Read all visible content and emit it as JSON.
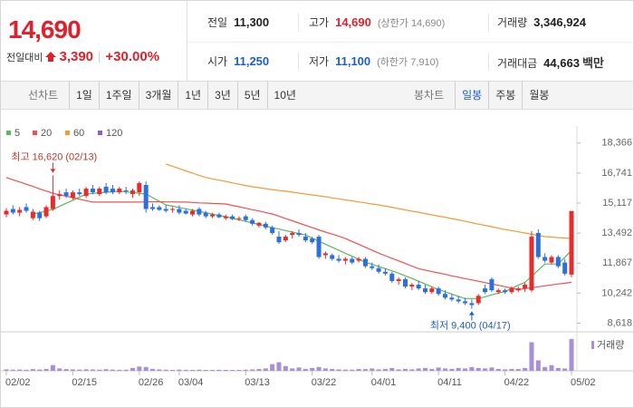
{
  "quote": {
    "price": "14,690",
    "change_label": "전일대비",
    "change": "3,390",
    "change_pct": "+30.00%",
    "color": "#e0202a"
  },
  "stats": [
    {
      "label": "전일",
      "value": "11,300",
      "color": "#222"
    },
    {
      "label": "고가",
      "value": "14,690",
      "note": "(상한가 14,690)",
      "color": "#e0202a"
    },
    {
      "label": "거래량",
      "value": "3,346,924",
      "color": "#222"
    },
    {
      "label": "시가",
      "value": "11,250",
      "color": "#1a5fd0"
    },
    {
      "label": "저가",
      "value": "11,100",
      "note": "(하한가 7,910)",
      "color": "#1a5fd0"
    },
    {
      "label": "거래대금",
      "value": "44,663",
      "unit": "백만",
      "color": "#222"
    }
  ],
  "tabs": {
    "line_label": "선차트",
    "periods": [
      "1일",
      "1주일",
      "3개월",
      "1년",
      "3년",
      "5년",
      "10년"
    ],
    "candle_label": "봉차트",
    "candles": [
      "일봉",
      "주봉",
      "월봉"
    ],
    "active_candle": 0
  },
  "chart_data": {
    "type": "candlestick",
    "categories": [
      "02/02",
      null,
      null,
      null,
      null,
      null,
      null,
      null,
      null,
      null,
      "02/15",
      null,
      null,
      null,
      null,
      null,
      null,
      null,
      null,
      null,
      "02/26",
      null,
      null,
      null,
      null,
      null,
      "03/04",
      null,
      null,
      null,
      null,
      null,
      null,
      null,
      null,
      null,
      "03/13",
      null,
      null,
      null,
      null,
      null,
      null,
      null,
      null,
      null,
      "03/22",
      null,
      null,
      null,
      null,
      null,
      null,
      null,
      null,
      "04/01",
      null,
      null,
      null,
      null,
      null,
      null,
      null,
      null,
      null,
      "04/11",
      null,
      null,
      null,
      null,
      null,
      null,
      null,
      null,
      null,
      "04/22",
      null,
      null,
      null,
      null,
      null,
      null,
      null,
      null,
      null,
      "05/02"
    ],
    "open": [
      14500,
      14800,
      14600,
      14900,
      14300,
      14600,
      14400,
      14800,
      15500,
      15700,
      15400,
      15700,
      15500,
      15900,
      15600,
      16000,
      15900,
      15700,
      15800,
      15600,
      15700,
      16100,
      14900,
      14900,
      14800,
      14750,
      14800,
      14700,
      14500,
      14800,
      14600,
      14400,
      14500,
      14300,
      14400,
      14250,
      14400,
      14200,
      13900,
      14000,
      13800,
      13300,
      13100,
      13400,
      13500,
      13300,
      13200,
      13300,
      12300,
      12300,
      12100,
      12000,
      12100,
      12000,
      12100,
      11700,
      11600,
      11400,
      11300,
      10900,
      11000,
      10600,
      10700,
      10500,
      10300,
      10500,
      10200,
      10000,
      9900,
      9800,
      9700,
      9700,
      10500,
      11000,
      10300,
      10400,
      10300,
      10400,
      10500,
      10400,
      13500,
      12200,
      11900,
      12200,
      11900,
      11250
    ],
    "high": [
      14850,
      15000,
      14900,
      15100,
      14800,
      14700,
      15000,
      16620,
      15800,
      15900,
      15800,
      15900,
      16000,
      16100,
      16000,
      16200,
      16100,
      16000,
      16000,
      15900,
      16300,
      16300,
      15100,
      15000,
      15000,
      14900,
      15000,
      14800,
      14800,
      14900,
      14700,
      14600,
      14600,
      14500,
      14500,
      14400,
      14500,
      14300,
      14100,
      14100,
      13900,
      13600,
      13400,
      13600,
      13700,
      13500,
      13300,
      13400,
      12500,
      12400,
      12300,
      12200,
      12200,
      12200,
      12200,
      11900,
      11800,
      11600,
      11400,
      11100,
      11100,
      10800,
      10900,
      10700,
      10600,
      10600,
      10400,
      10200,
      10100,
      10000,
      9900,
      10200,
      10700,
      11100,
      10500,
      10500,
      10600,
      10600,
      10800,
      13600,
      13700,
      12400,
      12300,
      12300,
      12100,
      14690
    ],
    "low": [
      14350,
      14500,
      14400,
      14600,
      14200,
      14150,
      14300,
      14700,
      15300,
      15400,
      15300,
      15500,
      15400,
      15600,
      15500,
      15600,
      15600,
      15600,
      15600,
      15400,
      15500,
      14600,
      14700,
      14700,
      14600,
      14600,
      14500,
      14500,
      14400,
      14400,
      14300,
      14300,
      14300,
      14200,
      14200,
      14150,
      14100,
      13900,
      13800,
      13700,
      13400,
      12900,
      13000,
      13200,
      13300,
      13000,
      12900,
      12100,
      12100,
      12000,
      11900,
      11800,
      11800,
      11900,
      11600,
      11500,
      11300,
      11200,
      10800,
      10700,
      10500,
      10400,
      10400,
      10200,
      10200,
      10100,
      9900,
      9800,
      9700,
      9600,
      9400,
      9600,
      10200,
      10300,
      10200,
      10200,
      10200,
      10300,
      10300,
      10300,
      12100,
      11900,
      11800,
      11600,
      11200,
      11100
    ],
    "close": [
      14700,
      14600,
      14750,
      14700,
      14650,
      14300,
      14900,
      15500,
      15600,
      15500,
      15700,
      15600,
      15900,
      15700,
      15900,
      15700,
      15700,
      15900,
      15750,
      15800,
      16200,
      14800,
      14800,
      14750,
      14700,
      14800,
      14600,
      14550,
      14700,
      14500,
      14400,
      14500,
      14350,
      14400,
      14250,
      14300,
      14200,
      14000,
      14050,
      13800,
      13500,
      13000,
      13300,
      13500,
      13400,
      13100,
      13000,
      12200,
      12400,
      12100,
      12000,
      12100,
      11900,
      12100,
      11700,
      11600,
      11400,
      11300,
      10900,
      11000,
      10600,
      10700,
      10500,
      10300,
      10500,
      10200,
      10000,
      9900,
      9800,
      9700,
      9600,
      10100,
      10300,
      10400,
      10400,
      10300,
      10500,
      10500,
      10700,
      13300,
      12200,
      12000,
      12200,
      11700,
      11300,
      14690
    ],
    "volume": [
      150000,
      120000,
      130000,
      110000,
      180000,
      140000,
      200000,
      600000,
      250000,
      180000,
      150000,
      130000,
      160000,
      140000,
      120000,
      170000,
      130000,
      110000,
      120000,
      300000,
      450000,
      400000,
      200000,
      150000,
      120000,
      100000,
      130000,
      110000,
      100000,
      120000,
      100000,
      90000,
      110000,
      100000,
      90000,
      100000,
      120000,
      150000,
      200000,
      250000,
      700000,
      900000,
      500000,
      250000,
      350000,
      200000,
      300000,
      400000,
      250000,
      200000,
      150000,
      130000,
      120000,
      200000,
      180000,
      250000,
      150000,
      200000,
      300000,
      150000,
      200000,
      150000,
      250000,
      300000,
      200000,
      350000,
      250000,
      200000,
      300000,
      250000,
      400000,
      300000,
      250000,
      350000,
      200000,
      150000,
      200000,
      180000,
      300000,
      3000000,
      1100000,
      400000,
      600000,
      300000,
      250000,
      3346924
    ],
    "volume_label": "거래량",
    "volume_color": "#a88fd8",
    "vlim": [
      0,
      3900000
    ],
    "up_color": "#e82b2b",
    "down_color": "#2b6fe0",
    "series": [
      {
        "name": "5",
        "color": "#5cb85c",
        "values": [
          null,
          null,
          null,
          null,
          14530,
          14610,
          14690,
          14770,
          14940,
          15110,
          15270,
          15440,
          15610,
          15640,
          15670,
          15700,
          15730,
          15760,
          15720,
          15690,
          15650,
          15610,
          15410,
          15220,
          15020,
          14950,
          14880,
          14810,
          14740,
          14670,
          14600,
          14520,
          14450,
          14380,
          14300,
          14210,
          14130,
          14040,
          13960,
          13870,
          13790,
          13710,
          13630,
          13550,
          13470,
          13390,
          13220,
          13060,
          12890,
          12730,
          12560,
          12400,
          12240,
          12080,
          11920,
          11800,
          11690,
          11570,
          11450,
          11330,
          11180,
          11040,
          10890,
          10740,
          10590,
          10440,
          10320,
          10190,
          10070,
          9950,
          9950,
          9950,
          10050,
          10150,
          10240,
          10340,
          10500,
          10670,
          10830,
          11160,
          11490,
          11820,
          11820,
          11820,
          12190,
          12560
        ]
      },
      {
        "name": "20",
        "color": "#f0504f",
        "values": [
          16500,
          16380,
          16260,
          16140,
          16020,
          15890,
          15770,
          15650,
          15570,
          15490,
          15410,
          15330,
          15250,
          15170,
          15170,
          15170,
          15170,
          15170,
          15170,
          15170,
          15170,
          15180,
          15190,
          15190,
          15180,
          15180,
          15170,
          15170,
          15150,
          15130,
          15120,
          15100,
          15090,
          15070,
          14990,
          14920,
          14840,
          14760,
          14690,
          14610,
          14530,
          14410,
          14280,
          14160,
          14040,
          13910,
          13790,
          13670,
          13550,
          13440,
          13320,
          13200,
          13040,
          12890,
          12730,
          12570,
          12410,
          12270,
          12130,
          11990,
          11850,
          11710,
          11570,
          11490,
          11410,
          11340,
          11260,
          11180,
          11110,
          11030,
          10960,
          10890,
          10810,
          10740,
          10670,
          10590,
          10520,
          10440,
          10490,
          10540,
          10590,
          10640,
          10690,
          10740,
          10780,
          10830
        ]
      },
      {
        "name": "60",
        "color": "#f39c34",
        "values": [
          null,
          null,
          null,
          null,
          null,
          null,
          null,
          null,
          null,
          null,
          null,
          null,
          null,
          null,
          null,
          null,
          null,
          null,
          null,
          null,
          null,
          null,
          null,
          null,
          17230,
          17110,
          16990,
          16860,
          16740,
          16620,
          16500,
          16430,
          16360,
          16290,
          16210,
          16140,
          16070,
          16000,
          15950,
          15900,
          15850,
          15800,
          15760,
          15710,
          15660,
          15610,
          15560,
          15510,
          15460,
          15400,
          15350,
          15290,
          15240,
          15180,
          15130,
          15070,
          15020,
          14950,
          14890,
          14820,
          14750,
          14680,
          14620,
          14550,
          14480,
          14410,
          14350,
          14280,
          14210,
          14130,
          14060,
          13980,
          13910,
          13840,
          13760,
          13690,
          13630,
          13560,
          13500,
          13430,
          13370,
          13300,
          13280,
          13250,
          13230,
          13200
        ]
      },
      {
        "name": "120",
        "color": "#8e5fc9",
        "values": [
          null,
          null,
          null,
          null,
          null,
          null,
          null,
          null,
          null,
          null,
          null,
          null,
          null,
          null,
          null,
          null,
          null,
          null,
          null,
          null,
          null,
          null,
          null,
          null,
          null,
          null,
          null,
          null,
          null,
          null,
          null,
          null,
          null,
          null,
          null,
          null,
          null,
          null,
          null,
          null,
          null,
          null,
          null,
          null,
          null,
          null,
          null,
          null,
          null,
          null,
          null,
          null,
          null,
          null,
          null,
          null,
          null,
          null,
          null,
          null,
          null,
          null,
          null,
          null,
          null,
          null,
          null,
          null,
          null,
          null,
          null,
          null,
          null,
          null,
          null,
          null,
          null,
          null,
          null,
          null,
          null,
          null,
          null,
          null,
          null,
          null
        ]
      }
    ],
    "ylim": [
      8150,
      18700
    ],
    "yticks": [
      {
        "value": 18366,
        "label": "18,366"
      },
      {
        "value": 16741,
        "label": "16,741"
      },
      {
        "value": 15117,
        "label": "15,117"
      },
      {
        "value": 13492,
        "label": "13,492"
      },
      {
        "value": 11867,
        "label": "11,867"
      },
      {
        "value": 10242,
        "label": "10,242"
      },
      {
        "value": 8618,
        "label": "8,618"
      }
    ],
    "annotations": [
      {
        "text": "최고 16,620 (02/13)",
        "index": 7,
        "value": 16620,
        "color": "#c0392b",
        "dir": "down"
      },
      {
        "text": "최저 9,400 (04/17)",
        "index": 70,
        "value": 9400,
        "color": "#1f5fbf",
        "dir": "up"
      }
    ]
  }
}
